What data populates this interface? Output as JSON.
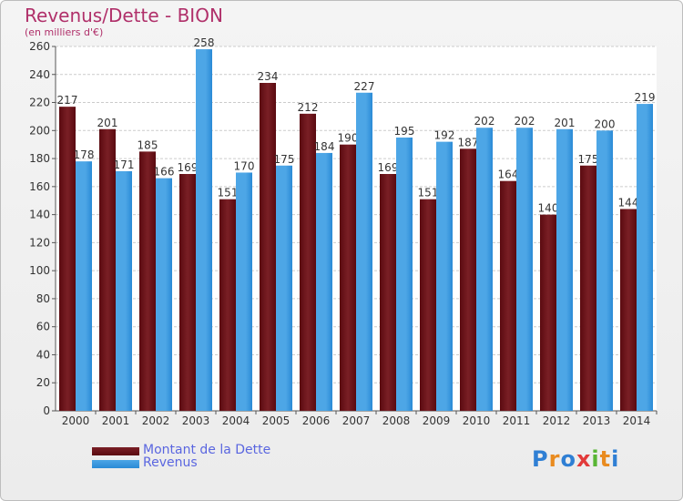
{
  "title": "Revenus/Dette - BION",
  "subtitle": "(en milliers d'€)",
  "logo": "Proxiti",
  "colors": {
    "dette": "#7a1f25",
    "dette_dark": "#5a0a10",
    "revenus": "#4da6e6",
    "revenus_dark": "#2a8ad6",
    "title": "#b0306a",
    "legend_text": "#5a66e0",
    "grid": "#cccccc",
    "axis": "#555555"
  },
  "chart_data": {
    "type": "bar",
    "title": "Revenus/Dette - BION",
    "subtitle": "(en milliers d'€)",
    "categories": [
      "2000",
      "2001",
      "2002",
      "2003",
      "2004",
      "2005",
      "2006",
      "2007",
      "2008",
      "2009",
      "2010",
      "2011",
      "2012",
      "2013",
      "2014"
    ],
    "series": [
      {
        "name": "Montant de la Dette",
        "values": [
          217,
          201,
          185,
          169,
          151,
          234,
          212,
          190,
          169,
          151,
          187,
          164,
          140,
          175,
          144
        ]
      },
      {
        "name": "Revenus",
        "values": [
          178,
          171,
          166,
          258,
          170,
          175,
          184,
          227,
          195,
          192,
          202,
          202,
          201,
          200,
          219
        ]
      }
    ],
    "ylim": [
      0,
      260
    ],
    "yticks": [
      0,
      20,
      40,
      60,
      80,
      100,
      120,
      140,
      160,
      180,
      200,
      220,
      240,
      260
    ],
    "grid": true,
    "legend": "bottom-left"
  }
}
